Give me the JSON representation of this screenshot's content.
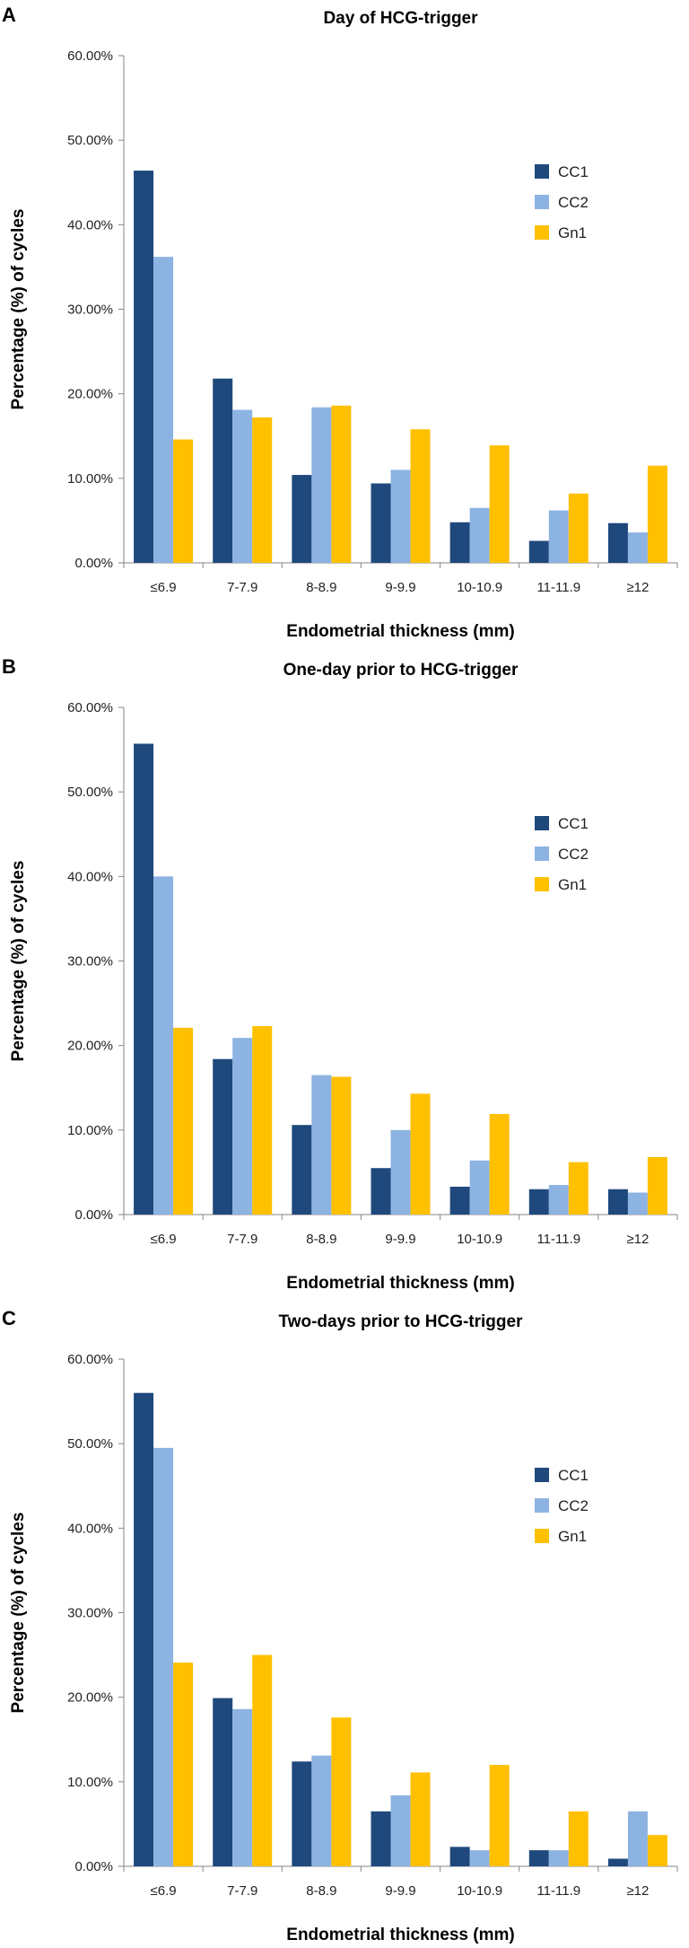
{
  "chart_data": [
    {
      "panel": "A",
      "type": "bar",
      "title": "Day of HCG-trigger",
      "xlabel": "Endometrial thickness (mm)",
      "ylabel": "Percentage (%) of cycles",
      "ylim": [
        0,
        60
      ],
      "yticks": [
        "0.00%",
        "10.00%",
        "20.00%",
        "30.00%",
        "40.00%",
        "50.00%",
        "60.00%"
      ],
      "categories": [
        "≤6.9",
        "7-7.9",
        "8-8.9",
        "9-9.9",
        "10-10.9",
        "11-11.9",
        "≥12"
      ],
      "series": [
        {
          "name": "CC1",
          "color": "#1f497d",
          "values": [
            46.4,
            21.8,
            10.4,
            9.4,
            4.8,
            2.6,
            4.7
          ]
        },
        {
          "name": "CC2",
          "color": "#8db3e2",
          "values": [
            36.2,
            18.1,
            18.4,
            11.0,
            6.5,
            6.2,
            3.6
          ]
        },
        {
          "name": "Gn1",
          "color": "#ffc000",
          "values": [
            14.6,
            17.2,
            18.6,
            15.8,
            13.9,
            8.2,
            11.5
          ]
        }
      ]
    },
    {
      "panel": "B",
      "type": "bar",
      "title": "One-day prior to HCG-trigger",
      "xlabel": "Endometrial thickness (mm)",
      "ylabel": "Percentage (%) of cycles",
      "ylim": [
        0,
        60
      ],
      "yticks": [
        "0.00%",
        "10.00%",
        "20.00%",
        "30.00%",
        "40.00%",
        "50.00%",
        "60.00%"
      ],
      "categories": [
        "≤6.9",
        "7-7.9",
        "8-8.9",
        "9-9.9",
        "10-10.9",
        "11-11.9",
        "≥12"
      ],
      "series": [
        {
          "name": "CC1",
          "color": "#1f497d",
          "values": [
            55.7,
            18.4,
            10.6,
            5.5,
            3.3,
            3.0,
            3.0
          ]
        },
        {
          "name": "CC2",
          "color": "#8db3e2",
          "values": [
            40.0,
            20.9,
            16.5,
            10.0,
            6.4,
            3.5,
            2.6
          ]
        },
        {
          "name": "Gn1",
          "color": "#ffc000",
          "values": [
            22.1,
            22.3,
            16.3,
            14.3,
            11.9,
            6.2,
            6.8
          ]
        }
      ]
    },
    {
      "panel": "C",
      "type": "bar",
      "title": "Two-days prior to HCG-trigger",
      "xlabel": "Endometrial thickness (mm)",
      "ylabel": "Percentage (%) of cycles",
      "ylim": [
        0,
        60
      ],
      "yticks": [
        "0.00%",
        "10.00%",
        "20.00%",
        "30.00%",
        "40.00%",
        "50.00%",
        "60.00%"
      ],
      "categories": [
        "≤6.9",
        "7-7.9",
        "8-8.9",
        "9-9.9",
        "10-10.9",
        "11-11.9",
        "≥12"
      ],
      "series": [
        {
          "name": "CC1",
          "color": "#1f497d",
          "values": [
            56.0,
            19.9,
            12.4,
            6.5,
            2.3,
            1.9,
            0.9
          ]
        },
        {
          "name": "CC2",
          "color": "#8db3e2",
          "values": [
            49.5,
            18.6,
            13.1,
            8.4,
            1.9,
            1.9,
            6.5
          ]
        },
        {
          "name": "Gn1",
          "color": "#ffc000",
          "values": [
            24.1,
            25.0,
            17.6,
            11.1,
            12.0,
            6.5,
            3.7
          ]
        }
      ]
    }
  ]
}
